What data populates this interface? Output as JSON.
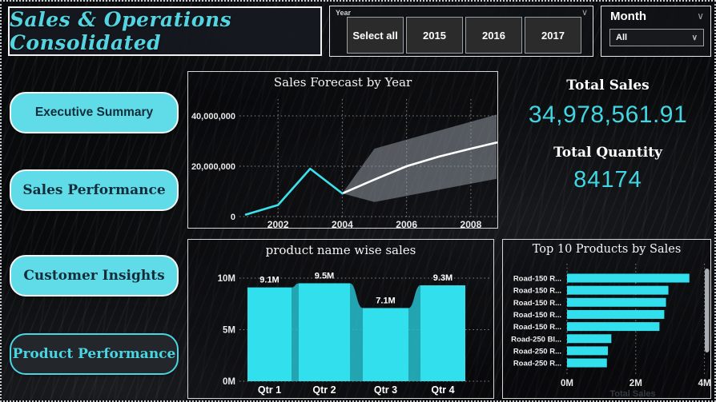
{
  "header": {
    "title": "Sales & Operations Consolidated"
  },
  "filters": {
    "year": {
      "label": "Year",
      "options": [
        "Select all",
        "2015",
        "2016",
        "2017"
      ]
    },
    "month": {
      "label": "Month",
      "selected": "All"
    }
  },
  "sidebar": {
    "items": [
      {
        "label": "Executive Summary",
        "active": false
      },
      {
        "label": "Sales Performance",
        "active": false
      },
      {
        "label": "Customer Insights",
        "active": false
      },
      {
        "label": "Product Performance",
        "active": true
      }
    ]
  },
  "kpis": {
    "total_sales_label": "Total Sales",
    "total_sales_value": "34,978,561.91",
    "total_quantity_label": "Total Quantity",
    "total_quantity_value": "84174"
  },
  "colors": {
    "accent_bar": "#32dfec",
    "ribbon": "#27bfce",
    "actual_line": "#3be2ee",
    "forecast_line": "#ffffff",
    "confidence_band": "rgba(158,166,176,0.5)",
    "kpi_value": "#41d6e2",
    "scrollbar": "#a9adb2"
  },
  "chart_data": [
    {
      "name": "sales-forecast-by-year",
      "type": "line",
      "title": "Sales Forecast by Year",
      "xlim": [
        2000.8,
        2008.8
      ],
      "ylim": [
        0,
        46000000
      ],
      "x_gridlines": [
        2002,
        2004,
        2006,
        2008
      ],
      "x_tick_labels": [
        "2002",
        "2004",
        "2006",
        "2008"
      ],
      "y_gridlines": [
        0,
        20000000,
        40000000
      ],
      "y_tick_labels": [
        "0",
        "20,000,000",
        "40,000,000"
      ],
      "series": [
        {
          "name": "actual",
          "x": [
            2001,
            2002,
            2003,
            2004
          ],
          "y": [
            800000,
            4600000,
            19000000,
            9200000
          ]
        },
        {
          "name": "forecast",
          "x": [
            2004,
            2005,
            2006,
            2007,
            2008,
            2008.8
          ],
          "y": [
            9200000,
            14700000,
            20000000,
            23800000,
            27000000,
            29400000
          ]
        }
      ],
      "confidence_band": [
        [
          2004,
          9200000
        ],
        [
          2005,
          27000000
        ],
        [
          2008.8,
          40500000
        ],
        [
          2008.8,
          15000000
        ],
        [
          2005,
          5800000
        ]
      ],
      "legend": "none",
      "grid": "dotted"
    },
    {
      "name": "product-name-wise-sales",
      "type": "bar",
      "subtype": "ribbon",
      "title": "product name wise sales",
      "categories": [
        "Qtr 1",
        "Qtr 2",
        "Qtr 3",
        "Qtr 4"
      ],
      "values": [
        9100000,
        9500000,
        7100000,
        9300000
      ],
      "value_labels": [
        "9.1M",
        "9.5M",
        "7.1M",
        "9.3M"
      ],
      "ylim": [
        0,
        10000000
      ],
      "y_gridlines": [
        0,
        5000000,
        10000000
      ],
      "y_tick_labels": [
        "0M",
        "5M",
        "10M"
      ],
      "legend": "none",
      "grid": "dotted"
    },
    {
      "name": "top-10-products-by-sales",
      "type": "bar",
      "subtype": "horizontal",
      "title": "Top 10 Products by Sales",
      "categories": [
        "Road-150 R...",
        "Road-150 R...",
        "Road-150 R...",
        "Road-150 R...",
        "Road-150 R...",
        "Road-250 Bl...",
        "Road-250 R...",
        "Road-250 R..."
      ],
      "values": [
        3560000,
        2950000,
        2880000,
        2830000,
        2690000,
        1290000,
        1190000,
        1160000
      ],
      "xlim": [
        0,
        4300000
      ],
      "x_gridlines": [
        0,
        2000000,
        4000000
      ],
      "x_tick_labels": [
        "0M",
        "2M",
        "4M"
      ],
      "xlabel": "Total Sales",
      "scrollbar_visible": true,
      "legend": "none",
      "grid": "dotted"
    }
  ]
}
